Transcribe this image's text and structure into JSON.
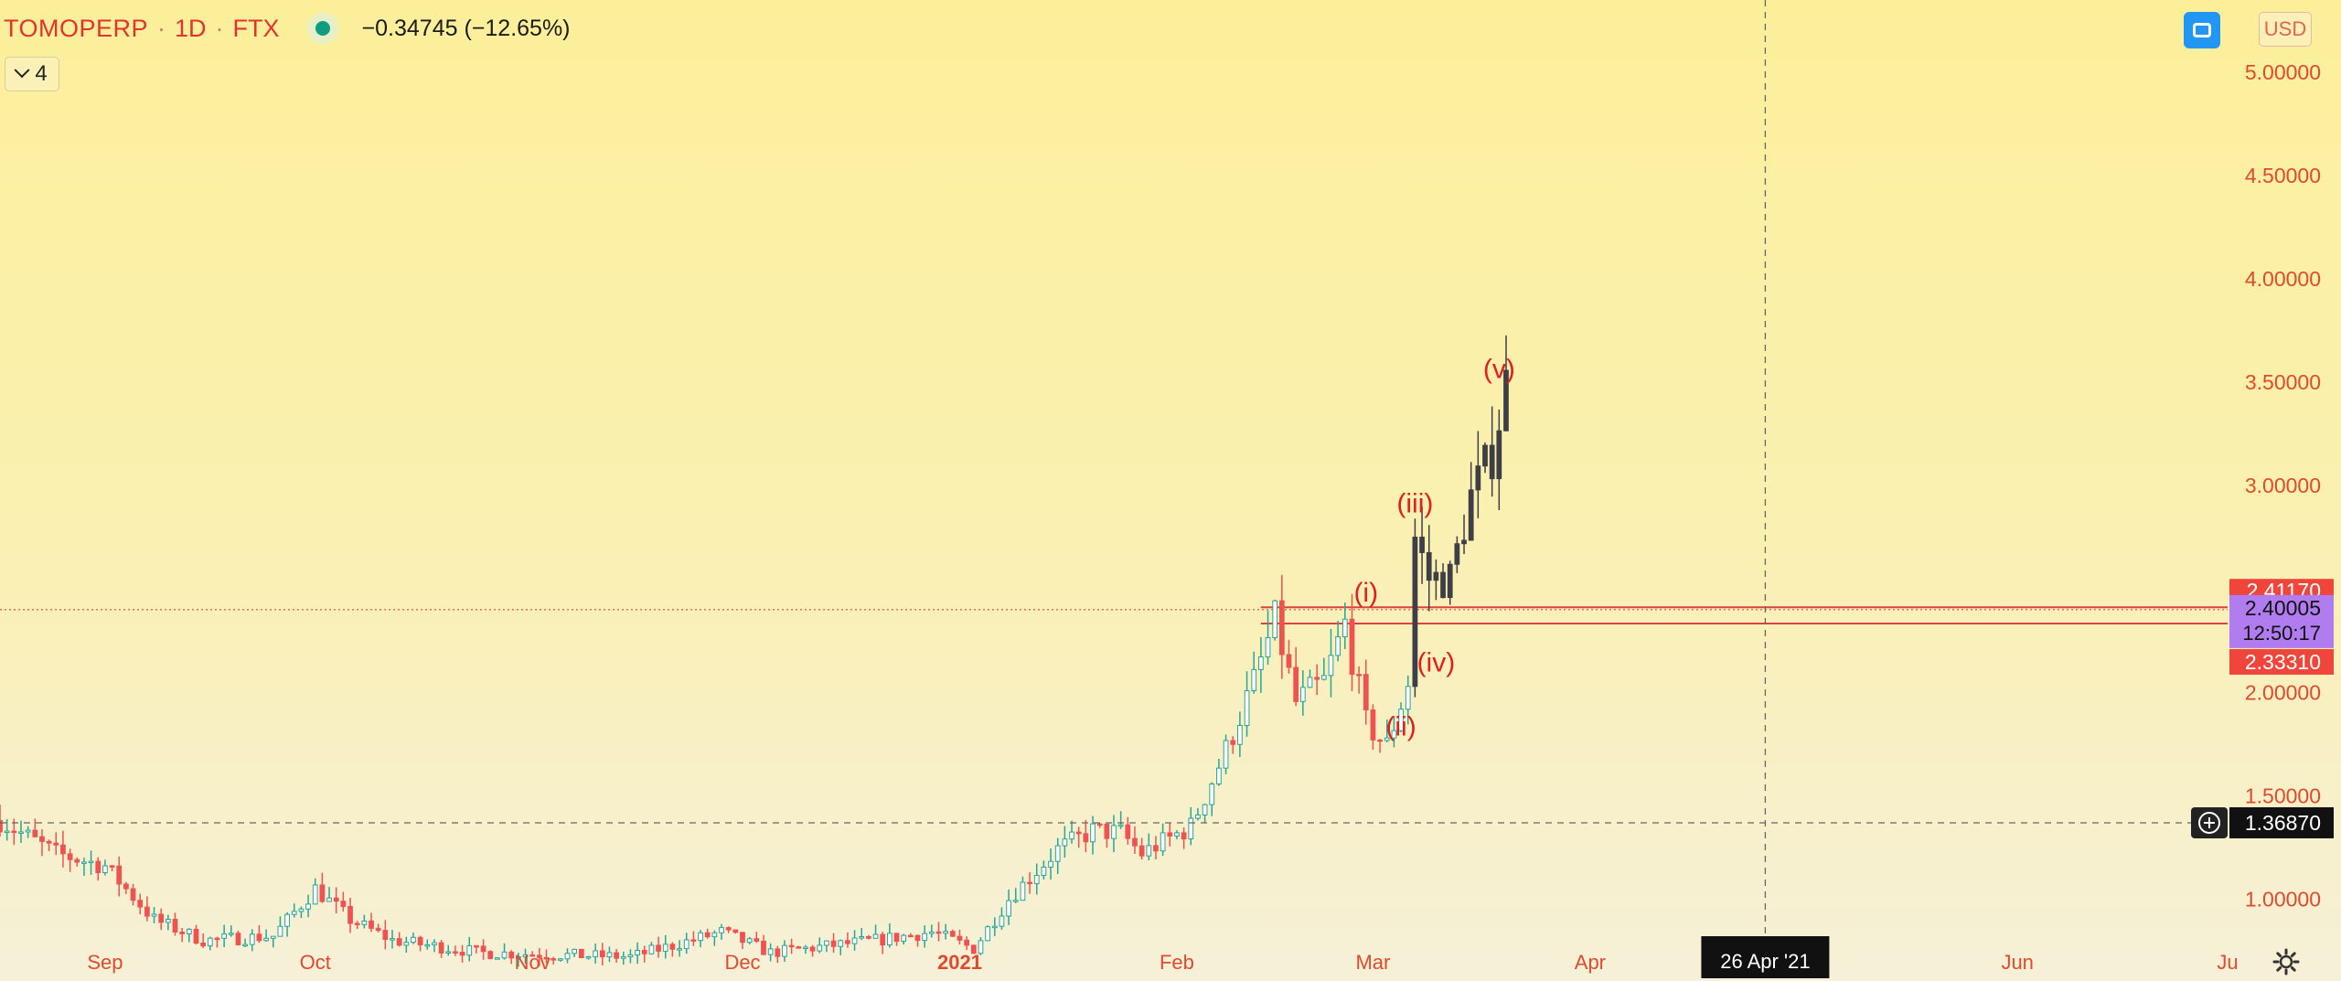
{
  "header": {
    "symbol": "TOMOPERP",
    "interval": "1D",
    "exchange": "FTX",
    "change": "−0.34745 (−12.65%)",
    "collapse_count": "4",
    "currency_button": "USD"
  },
  "colors": {
    "up": "#26a69a",
    "down": "#ef5350",
    "candle_recent": "#3e3e46",
    "price_axis_text": "#e04a2e",
    "time_axis_text": "#e04a2e",
    "wave_label": "#e02020",
    "level_line": "#e04040",
    "last_price_bg": "#b07cf0",
    "level_label_bg": "#f0453a",
    "crosshair_label_bg": "#111111"
  },
  "crosshair": {
    "price_label": "1.36870",
    "date_label": "26 Apr '21",
    "price": 1.3687,
    "date": "2021-04-26"
  },
  "chart_data": {
    "type": "candlestick",
    "title": "TOMOPERP · 1D · FTX",
    "y_axis": {
      "position": "right",
      "ticks": [
        "5.00000",
        "4.50000",
        "4.00000",
        "3.50000",
        "3.00000",
        "2.00000",
        "1.50000",
        "1.00000"
      ],
      "tick_values": [
        5.0,
        4.5,
        4.0,
        3.5,
        3.0,
        2.0,
        1.5,
        1.0
      ],
      "range": [
        0.82,
        5.35
      ]
    },
    "x_axis": {
      "ticks": [
        {
          "label": "Sep",
          "date": "2020-09-01",
          "bold": false
        },
        {
          "label": "Oct",
          "date": "2020-10-01",
          "bold": false
        },
        {
          "label": "Nov",
          "date": "2020-11-01",
          "bold": false
        },
        {
          "label": "Dec",
          "date": "2020-12-01",
          "bold": false
        },
        {
          "label": "2021",
          "date": "2021-01-01",
          "bold": true
        },
        {
          "label": "Feb",
          "date": "2021-02-01",
          "bold": false
        },
        {
          "label": "Mar",
          "date": "2021-03-01",
          "bold": false
        },
        {
          "label": "Apr",
          "date": "2021-04-01",
          "bold": false
        },
        {
          "label": "Jun",
          "date": "2021-06-01",
          "bold": false
        },
        {
          "label": "Ju",
          "date": "2021-07-01",
          "bold": false
        }
      ],
      "range": [
        "2020-08-17",
        "2021-07-01"
      ]
    },
    "price_labels": [
      {
        "text": "2.41170",
        "value": 2.4117,
        "style": "level"
      },
      {
        "text": "2.40005",
        "value": 2.40005,
        "style": "last"
      },
      {
        "text": "12:50:17",
        "style": "countdown"
      },
      {
        "text": "2.33310",
        "value": 2.3331,
        "style": "level"
      }
    ],
    "horizontal_levels": [
      2.4117,
      2.3331
    ],
    "last_price": 2.40005,
    "annotations": [
      {
        "text": "(i)",
        "date": "2021-02-28",
        "price": 2.44
      },
      {
        "text": "(ii)",
        "date": "2021-03-05",
        "price": 1.79
      },
      {
        "text": "(iii)",
        "date": "2021-03-07",
        "price": 2.87
      },
      {
        "text": "(iv)",
        "date": "2021-03-10",
        "price": 2.1
      },
      {
        "text": "(v)",
        "date": "2021-03-19",
        "price": 3.52
      }
    ],
    "anchors": [
      [
        "2020-08-17",
        1.38
      ],
      [
        "2020-08-25",
        1.22
      ],
      [
        "2020-09-01",
        1.16
      ],
      [
        "2020-09-08",
        0.9
      ],
      [
        "2020-09-15",
        0.8
      ],
      [
        "2020-09-25",
        0.82
      ],
      [
        "2020-10-01",
        1.05
      ],
      [
        "2020-10-06",
        0.9
      ],
      [
        "2020-10-12",
        0.8
      ],
      [
        "2020-10-25",
        0.74
      ],
      [
        "2020-11-15",
        0.72
      ],
      [
        "2020-11-28",
        0.84
      ],
      [
        "2020-12-05",
        0.74
      ],
      [
        "2020-12-20",
        0.8
      ],
      [
        "2020-12-28",
        0.84
      ],
      [
        "2021-01-03",
        0.76
      ],
      [
        "2021-01-08",
        1.0
      ],
      [
        "2021-01-15",
        1.24
      ],
      [
        "2021-01-20",
        1.33
      ],
      [
        "2021-01-24",
        1.32
      ],
      [
        "2021-01-27",
        1.22
      ],
      [
        "2021-02-03",
        1.35
      ],
      [
        "2021-02-08",
        1.72
      ],
      [
        "2021-02-12",
        2.05
      ],
      [
        "2021-02-15",
        2.35
      ],
      [
        "2021-02-18",
        1.95
      ],
      [
        "2021-02-22",
        2.05
      ],
      [
        "2021-02-25",
        2.33
      ],
      [
        "2021-02-28",
        1.85
      ],
      [
        "2021-03-03",
        1.74
      ],
      [
        "2021-03-06",
        2.05
      ],
      [
        "2021-03-07",
        2.75
      ],
      [
        "2021-03-09",
        2.55
      ],
      [
        "2021-03-12",
        2.55
      ],
      [
        "2021-03-15",
        2.95
      ],
      [
        "2021-03-18",
        3.15
      ],
      [
        "2021-03-20",
        3.5
      ]
    ]
  }
}
